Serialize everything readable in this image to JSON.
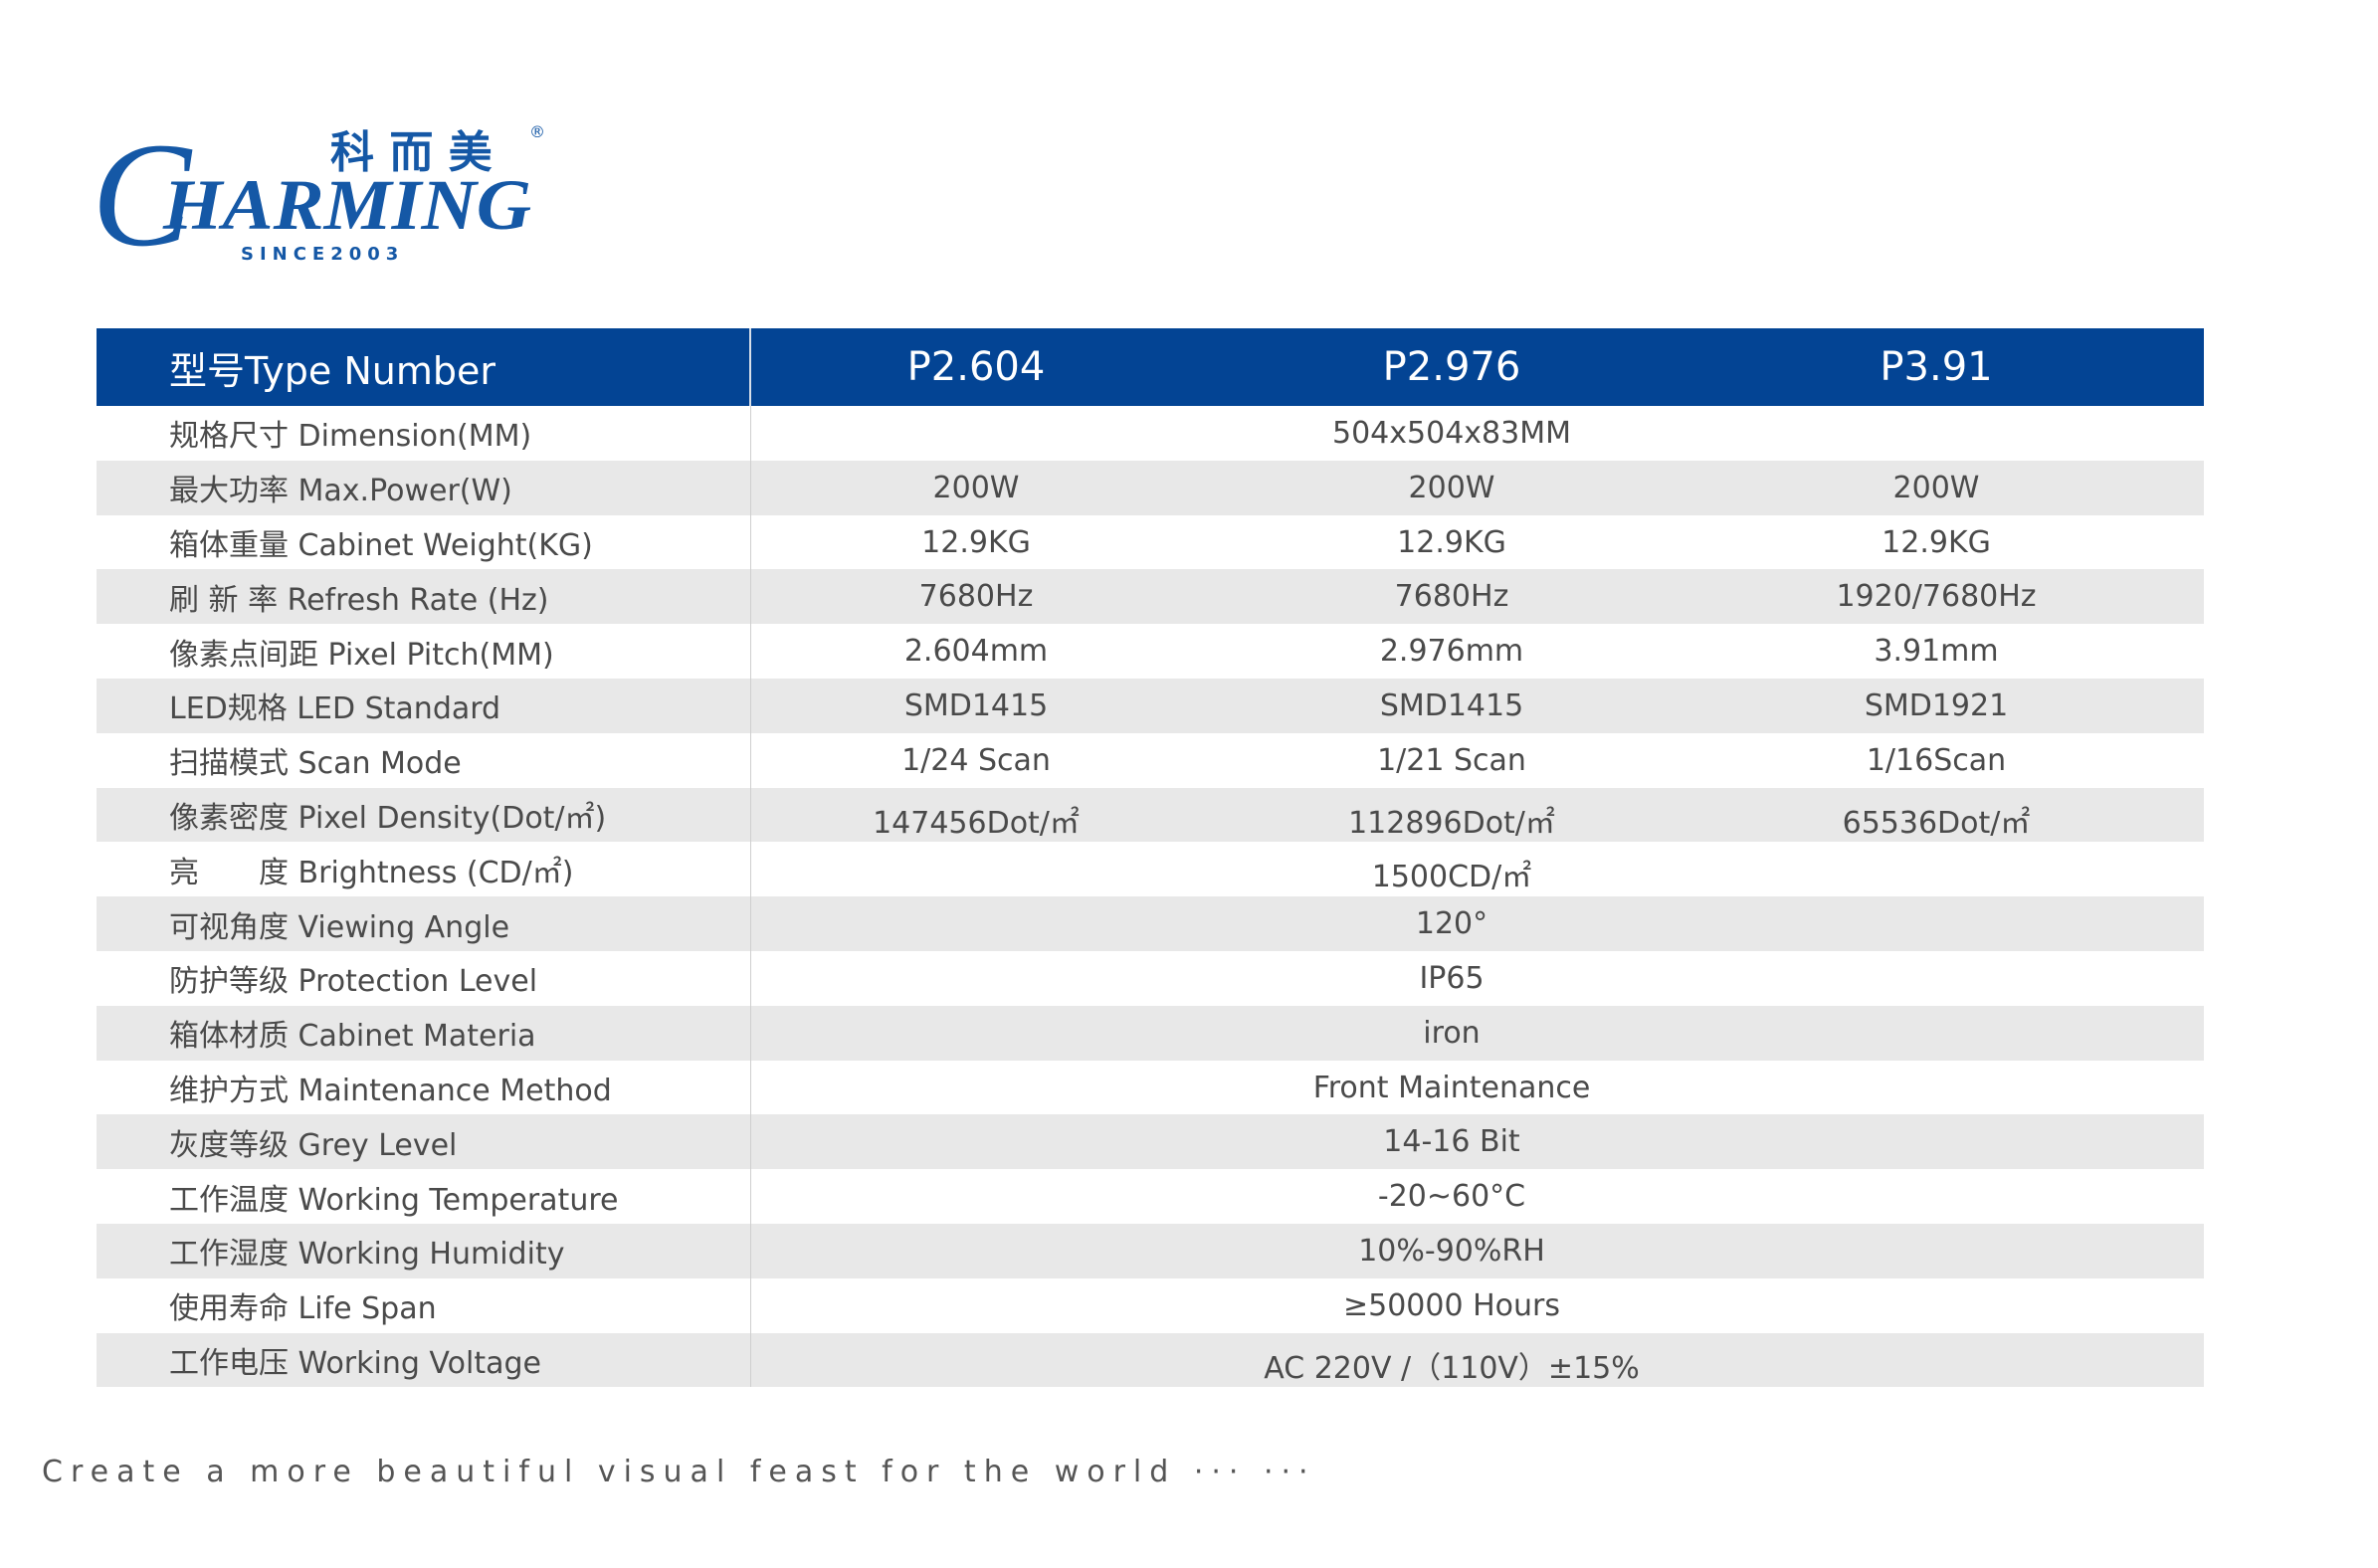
{
  "logo": {
    "cn": "科 而 美",
    "en_initial": "C",
    "en_rest": "HARMING",
    "since": "SINCE2003",
    "registered": "®"
  },
  "table": {
    "header": {
      "label": "型号Type Number",
      "models": [
        "P2.604",
        "P2.976",
        "P3.91"
      ]
    },
    "rows": [
      {
        "label": "规格尺寸 Dimension(MM)",
        "merged": "504x504x83MM"
      },
      {
        "label": "最大功率 Max.Power(W)",
        "values": [
          "200W",
          "200W",
          "200W"
        ]
      },
      {
        "label": "箱体重量 Cabinet Weight(KG)",
        "values": [
          "12.9KG",
          "12.9KG",
          "12.9KG"
        ]
      },
      {
        "label": "刷 新 率 Refresh Rate (Hz)",
        "values": [
          "7680Hz",
          "7680Hz",
          "1920/7680Hz"
        ]
      },
      {
        "label": "像素点间距 Pixel Pitch(MM)",
        "values": [
          "2.604mm",
          "2.976mm",
          "3.91mm"
        ]
      },
      {
        "label": "LED规格 LED Standard",
        "values": [
          "SMD1415",
          "SMD1415",
          "SMD1921"
        ]
      },
      {
        "label": "扫描模式 Scan Mode",
        "values": [
          "1/24 Scan",
          "1/21 Scan",
          "1/16Scan"
        ]
      },
      {
        "label": "像素密度 Pixel Density(Dot/㎡)",
        "values": [
          "147456Dot/㎡",
          "112896Dot/㎡",
          "65536Dot/㎡"
        ]
      },
      {
        "label": "亮　　度 Brightness (CD/㎡)",
        "merged": "1500CD/㎡"
      },
      {
        "label": "可视角度 Viewing Angle",
        "merged": "120°"
      },
      {
        "label": "防护等级 Protection Level",
        "merged": "IP65"
      },
      {
        "label": "箱体材质 Cabinet Materia",
        "merged": "iron"
      },
      {
        "label": "维护方式 Maintenance Method",
        "merged": "Front Maintenance"
      },
      {
        "label": "灰度等级 Grey Level",
        "merged": "14-16 Bit"
      },
      {
        "label": "工作温度 Working Temperature",
        "merged": "-20~60°C"
      },
      {
        "label": "工作湿度 Working Humidity",
        "merged": "10%-90%RH"
      },
      {
        "label": "使用寿命 Life Span",
        "merged": "≥50000 Hours"
      },
      {
        "label": "工作电压 Working Voltage",
        "merged": "AC 220V /（110V）±15%"
      }
    ]
  },
  "footer": {
    "tagline": "Create a more beautiful visual feast for the world ··· ···"
  },
  "colors": {
    "brand_blue": "#034494",
    "row_alt": "#e8e8e8",
    "text": "#4a4a4a"
  }
}
